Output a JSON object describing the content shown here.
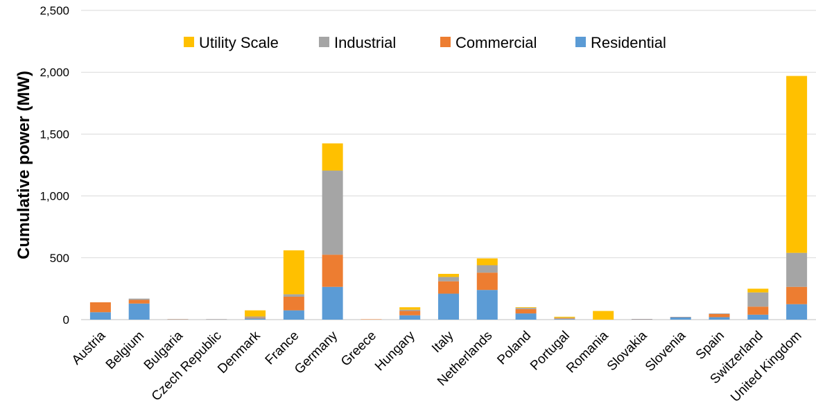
{
  "chart_data": {
    "type": "bar",
    "stacked": true,
    "title": "",
    "xlabel": "",
    "ylabel": "Cumulative power (MW)",
    "ylim": [
      0,
      2500
    ],
    "yticks": [
      0,
      500,
      1000,
      1500,
      2000,
      2500
    ],
    "ytick_labels": [
      "0",
      "500",
      "1,000",
      "1,500",
      "2,000",
      "2,500"
    ],
    "grid": true,
    "legend_position": "top",
    "categories": [
      "Austria",
      "Belgium",
      "Bulgaria",
      "Czech Republic",
      "Denmark",
      "France",
      "Germany",
      "Greece",
      "Hungary",
      "Italy",
      "Netherlands",
      "Poland",
      "Portugal",
      "Romania",
      "Slovakia",
      "Slovenia",
      "Spain",
      "Switzerland",
      "United Kingdom"
    ],
    "series": [
      {
        "name": "Residential",
        "color": "#5b9bd5",
        "values": [
          60,
          130,
          2,
          2,
          10,
          75,
          265,
          0,
          35,
          210,
          240,
          50,
          5,
          0,
          3,
          20,
          20,
          40,
          125
        ]
      },
      {
        "name": "Commercial",
        "color": "#ed7d31",
        "values": [
          80,
          30,
          2,
          1,
          5,
          110,
          260,
          3,
          35,
          100,
          140,
          35,
          5,
          0,
          2,
          2,
          25,
          65,
          140
        ]
      },
      {
        "name": "Industrial",
        "color": "#a5a5a5",
        "values": [
          0,
          10,
          0,
          1,
          10,
          20,
          680,
          0,
          10,
          35,
          60,
          10,
          5,
          0,
          0,
          0,
          5,
          115,
          275
        ]
      },
      {
        "name": "Utility Scale",
        "color": "#ffc000",
        "values": [
          0,
          0,
          0,
          0,
          50,
          355,
          220,
          0,
          20,
          25,
          55,
          5,
          8,
          70,
          0,
          0,
          0,
          30,
          1430
        ]
      }
    ],
    "legend_order": [
      "Utility Scale",
      "Industrial",
      "Commercial",
      "Residential"
    ]
  }
}
